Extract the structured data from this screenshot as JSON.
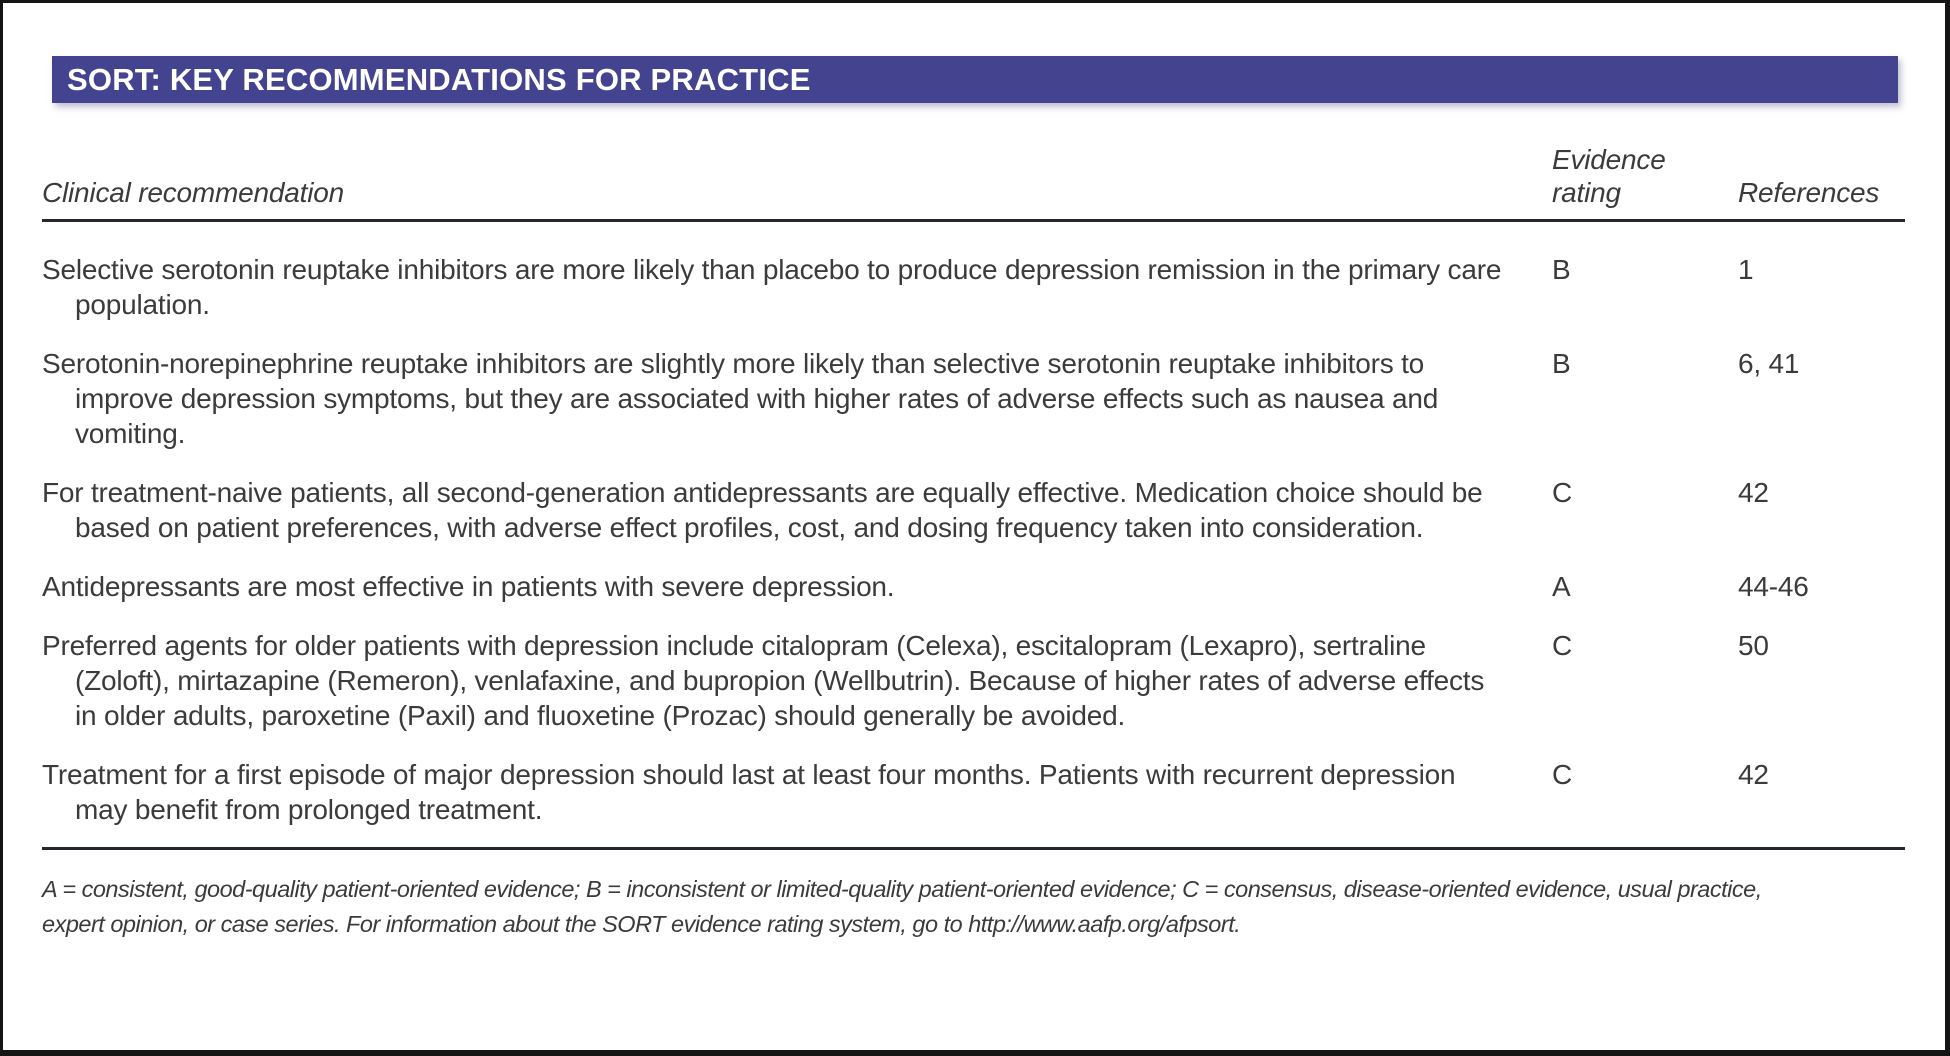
{
  "table": {
    "title": "SORT: KEY RECOMMENDATIONS FOR PRACTICE",
    "columns": {
      "recommendation": "Clinical recommendation",
      "evidence_rating": "Evidence\nrating",
      "references": "References"
    },
    "rows": [
      {
        "recommendation": "Selective serotonin reuptake inhibitors are more likely than placebo to produce depression remission in the primary care population.",
        "evidence_rating": "B",
        "references": "1"
      },
      {
        "recommendation": "Serotonin-norepinephrine reuptake inhibitors are slightly more likely than selective serotonin reuptake inhibitors to improve depression symptoms, but they are associated with higher rates of adverse effects such as nausea and vomiting.",
        "evidence_rating": "B",
        "references": "6, 41"
      },
      {
        "recommendation": "For treatment-naive patients, all second-generation antidepressants are equally effective. Medication choice should be based on patient preferences, with adverse effect profiles, cost, and dosing frequency taken into consideration.",
        "evidence_rating": "C",
        "references": "42"
      },
      {
        "recommendation": "Antidepressants are most effective in patients with severe depression.",
        "evidence_rating": "A",
        "references": "44-46"
      },
      {
        "recommendation": "Preferred agents for older patients with depression include citalopram (Celexa), escitalopram (Lexapro), sertraline (Zoloft), mirtazapine (Remeron), venlafaxine, and bupropion (Wellbutrin). Because of higher rates of adverse effects in older adults, paroxetine (Paxil) and fluoxetine (Prozac) should generally be avoided.",
        "evidence_rating": "C",
        "references": "50"
      },
      {
        "recommendation": "Treatment for a first episode of major depression should last at least four months. Patients with recurrent depression may benefit from prolonged treatment.",
        "evidence_rating": "C",
        "references": "42"
      }
    ],
    "footnote": {
      "line1": "A = consistent, good-quality patient-oriented evidence; B = inconsistent or limited-quality patient-oriented evidence; C = consensus, disease-oriented evidence, usual practice,",
      "line2": "expert opinion, or case series. For information about the SORT evidence rating system, go to http://www.aafp.org/afpsort."
    },
    "colors": {
      "header_bar": "#434390",
      "text": "#3B3B3B",
      "rule": "#26262E"
    }
  }
}
